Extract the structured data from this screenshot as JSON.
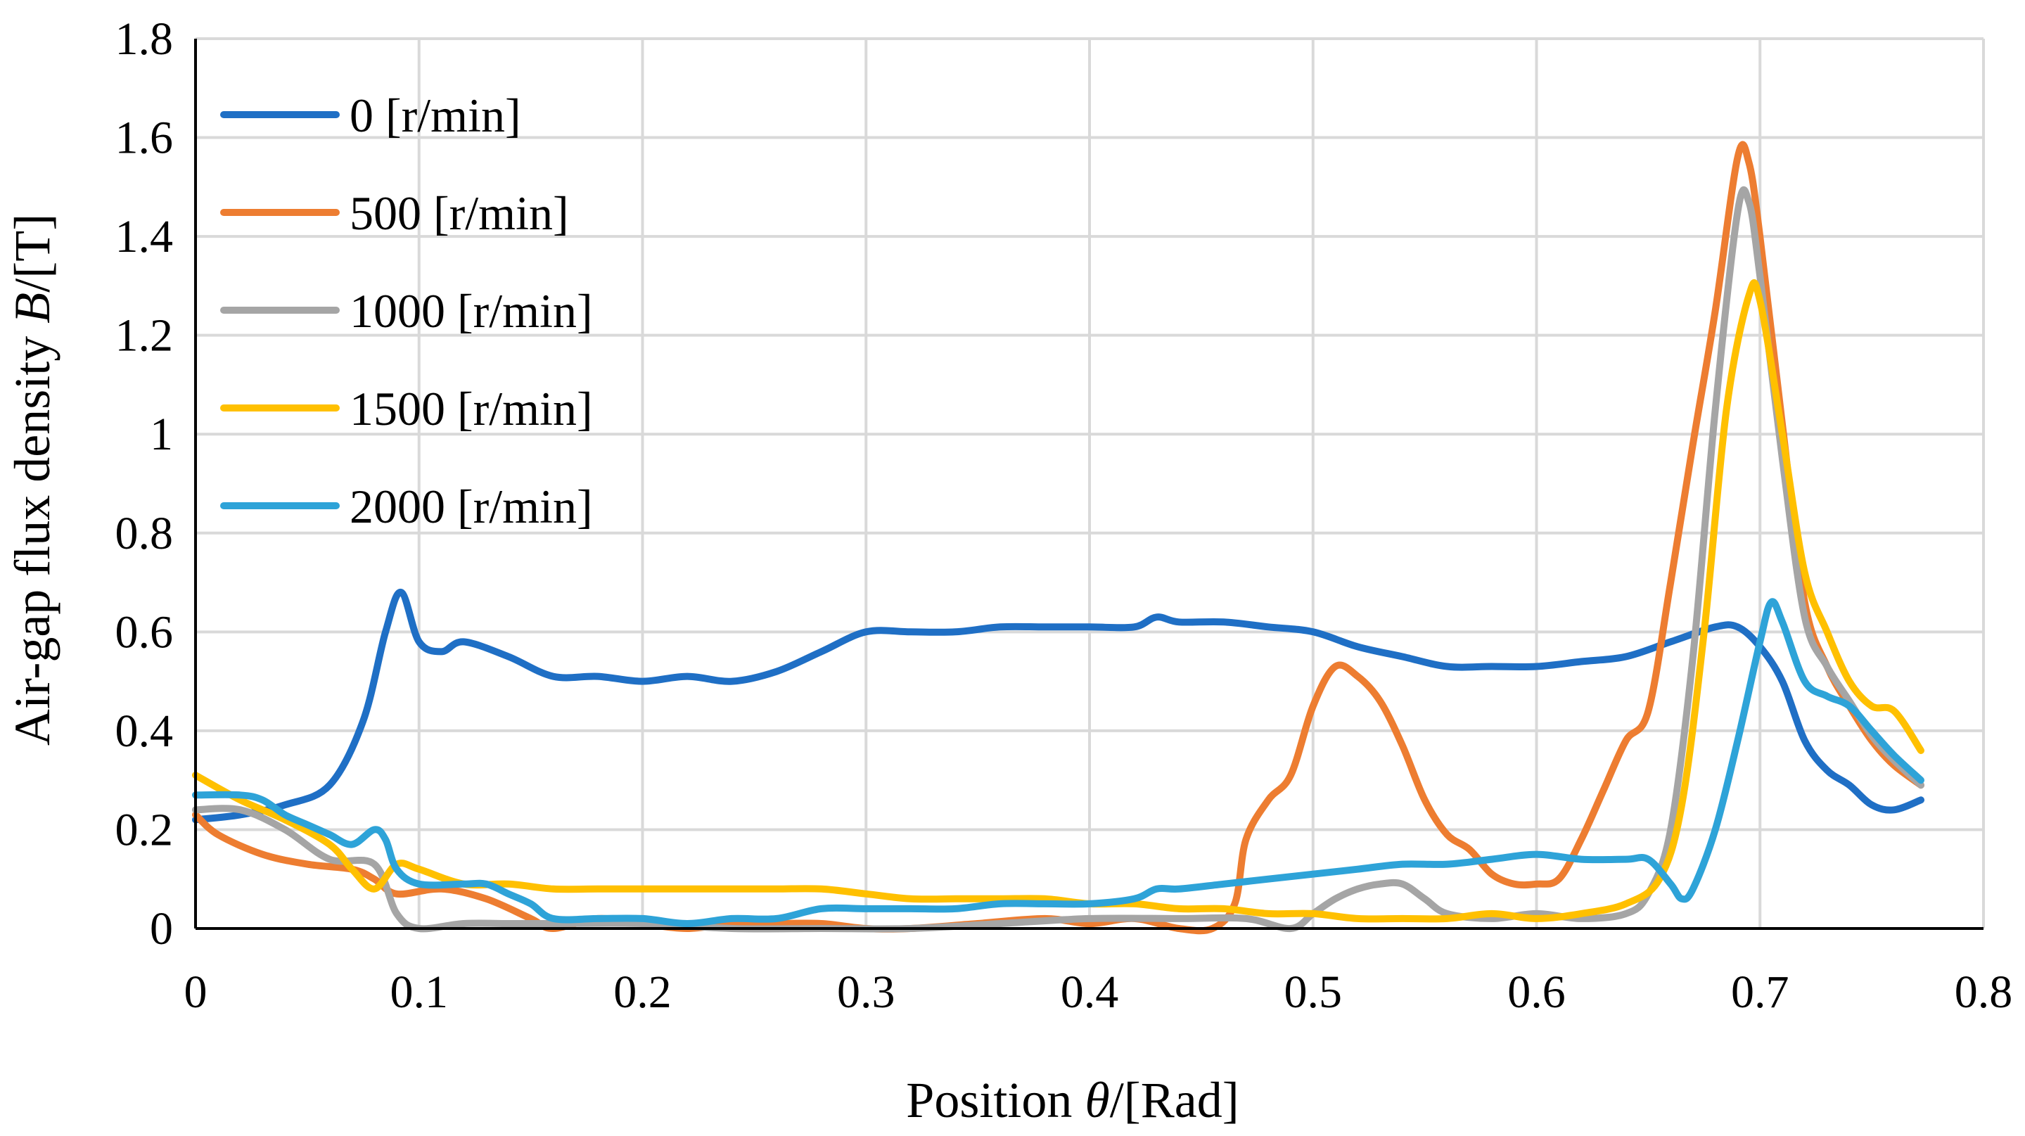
{
  "chart_data": {
    "type": "line",
    "title": "",
    "xlabel": {
      "prefix": "Position ",
      "symbol": "θ",
      "suffix": "/[Rad]"
    },
    "ylabel": {
      "prefix": "Air-gap flux density ",
      "symbol": "B",
      "suffix": "/[T]"
    },
    "xlim": [
      0,
      0.8
    ],
    "ylim": [
      0,
      1.8
    ],
    "xticks": [
      0,
      0.1,
      0.2,
      0.3,
      0.4,
      0.5,
      0.6,
      0.7,
      0.8
    ],
    "xtick_labels": [
      "0",
      "0.1",
      "0.2",
      "0.3",
      "0.4",
      "0.5",
      "0.6",
      "0.7",
      "0.8"
    ],
    "yticks": [
      0,
      0.2,
      0.4,
      0.6,
      0.8,
      1,
      1.2,
      1.4,
      1.6,
      1.8
    ],
    "ytick_labels": [
      "0",
      "0.2",
      "0.4",
      "0.6",
      "0.8",
      "1",
      "1.2",
      "1.4",
      "1.6",
      "1.8"
    ],
    "grid": true,
    "legend_position": "top-left",
    "series": [
      {
        "name": "0 [r/min]",
        "color": "#1f6fc5",
        "points": [
          [
            0,
            0.22
          ],
          [
            0.02,
            0.23
          ],
          [
            0.04,
            0.25
          ],
          [
            0.06,
            0.29
          ],
          [
            0.075,
            0.42
          ],
          [
            0.085,
            0.6
          ],
          [
            0.092,
            0.68
          ],
          [
            0.1,
            0.58
          ],
          [
            0.11,
            0.56
          ],
          [
            0.12,
            0.58
          ],
          [
            0.14,
            0.55
          ],
          [
            0.16,
            0.51
          ],
          [
            0.18,
            0.51
          ],
          [
            0.2,
            0.5
          ],
          [
            0.22,
            0.51
          ],
          [
            0.24,
            0.5
          ],
          [
            0.26,
            0.52
          ],
          [
            0.28,
            0.56
          ],
          [
            0.3,
            0.6
          ],
          [
            0.32,
            0.6
          ],
          [
            0.34,
            0.6
          ],
          [
            0.36,
            0.61
          ],
          [
            0.38,
            0.61
          ],
          [
            0.4,
            0.61
          ],
          [
            0.42,
            0.61
          ],
          [
            0.43,
            0.63
          ],
          [
            0.44,
            0.62
          ],
          [
            0.46,
            0.62
          ],
          [
            0.48,
            0.61
          ],
          [
            0.5,
            0.6
          ],
          [
            0.52,
            0.57
          ],
          [
            0.54,
            0.55
          ],
          [
            0.56,
            0.53
          ],
          [
            0.58,
            0.53
          ],
          [
            0.6,
            0.53
          ],
          [
            0.62,
            0.54
          ],
          [
            0.64,
            0.55
          ],
          [
            0.66,
            0.58
          ],
          [
            0.68,
            0.61
          ],
          [
            0.69,
            0.61
          ],
          [
            0.7,
            0.57
          ],
          [
            0.71,
            0.5
          ],
          [
            0.72,
            0.38
          ],
          [
            0.73,
            0.32
          ],
          [
            0.74,
            0.29
          ],
          [
            0.75,
            0.25
          ],
          [
            0.76,
            0.24
          ],
          [
            0.772,
            0.26
          ]
        ]
      },
      {
        "name": "500 [r/min]",
        "color": "#ed7d31",
        "points": [
          [
            0,
            0.23
          ],
          [
            0.01,
            0.19
          ],
          [
            0.03,
            0.15
          ],
          [
            0.05,
            0.13
          ],
          [
            0.07,
            0.12
          ],
          [
            0.08,
            0.1
          ],
          [
            0.09,
            0.07
          ],
          [
            0.11,
            0.08
          ],
          [
            0.13,
            0.06
          ],
          [
            0.15,
            0.02
          ],
          [
            0.16,
            0
          ],
          [
            0.18,
            0.02
          ],
          [
            0.2,
            0.01
          ],
          [
            0.22,
            0
          ],
          [
            0.24,
            0.01
          ],
          [
            0.26,
            0.01
          ],
          [
            0.28,
            0.01
          ],
          [
            0.3,
            0
          ],
          [
            0.32,
            0
          ],
          [
            0.35,
            0.01
          ],
          [
            0.38,
            0.02
          ],
          [
            0.4,
            0.01
          ],
          [
            0.42,
            0.02
          ],
          [
            0.44,
            0
          ],
          [
            0.455,
            0
          ],
          [
            0.465,
            0.05
          ],
          [
            0.47,
            0.18
          ],
          [
            0.48,
            0.26
          ],
          [
            0.49,
            0.31
          ],
          [
            0.5,
            0.45
          ],
          [
            0.51,
            0.53
          ],
          [
            0.52,
            0.51
          ],
          [
            0.53,
            0.46
          ],
          [
            0.54,
            0.37
          ],
          [
            0.55,
            0.26
          ],
          [
            0.56,
            0.19
          ],
          [
            0.57,
            0.16
          ],
          [
            0.58,
            0.11
          ],
          [
            0.59,
            0.09
          ],
          [
            0.6,
            0.09
          ],
          [
            0.61,
            0.1
          ],
          [
            0.62,
            0.18
          ],
          [
            0.63,
            0.28
          ],
          [
            0.64,
            0.38
          ],
          [
            0.65,
            0.44
          ],
          [
            0.66,
            0.7
          ],
          [
            0.67,
            0.98
          ],
          [
            0.68,
            1.25
          ],
          [
            0.69,
            1.56
          ],
          [
            0.695,
            1.55
          ],
          [
            0.7,
            1.4
          ],
          [
            0.71,
            1.02
          ],
          [
            0.72,
            0.66
          ],
          [
            0.73,
            0.53
          ],
          [
            0.74,
            0.45
          ],
          [
            0.75,
            0.38
          ],
          [
            0.76,
            0.33
          ],
          [
            0.772,
            0.29
          ]
        ]
      },
      {
        "name": "1000 [r/min]",
        "color": "#a5a5a5",
        "points": [
          [
            0,
            0.24
          ],
          [
            0.02,
            0.24
          ],
          [
            0.04,
            0.2
          ],
          [
            0.06,
            0.14
          ],
          [
            0.08,
            0.13
          ],
          [
            0.09,
            0.03
          ],
          [
            0.1,
            0
          ],
          [
            0.12,
            0.01
          ],
          [
            0.14,
            0.01
          ],
          [
            0.16,
            0.01
          ],
          [
            0.2,
            0.01
          ],
          [
            0.24,
            0
          ],
          [
            0.28,
            0
          ],
          [
            0.32,
            0
          ],
          [
            0.36,
            0.01
          ],
          [
            0.4,
            0.02
          ],
          [
            0.44,
            0.02
          ],
          [
            0.47,
            0.02
          ],
          [
            0.49,
            0
          ],
          [
            0.5,
            0.03
          ],
          [
            0.51,
            0.06
          ],
          [
            0.52,
            0.08
          ],
          [
            0.53,
            0.09
          ],
          [
            0.54,
            0.09
          ],
          [
            0.55,
            0.06
          ],
          [
            0.56,
            0.03
          ],
          [
            0.58,
            0.02
          ],
          [
            0.6,
            0.03
          ],
          [
            0.62,
            0.02
          ],
          [
            0.64,
            0.03
          ],
          [
            0.65,
            0.07
          ],
          [
            0.66,
            0.2
          ],
          [
            0.67,
            0.55
          ],
          [
            0.68,
            1.05
          ],
          [
            0.69,
            1.45
          ],
          [
            0.695,
            1.47
          ],
          [
            0.7,
            1.32
          ],
          [
            0.71,
            0.95
          ],
          [
            0.72,
            0.63
          ],
          [
            0.73,
            0.53
          ],
          [
            0.74,
            0.46
          ],
          [
            0.75,
            0.39
          ],
          [
            0.76,
            0.34
          ],
          [
            0.772,
            0.29
          ]
        ]
      },
      {
        "name": "1500 [r/min]",
        "color": "#ffc000",
        "points": [
          [
            0,
            0.31
          ],
          [
            0.02,
            0.26
          ],
          [
            0.04,
            0.22
          ],
          [
            0.06,
            0.17
          ],
          [
            0.07,
            0.12
          ],
          [
            0.08,
            0.08
          ],
          [
            0.09,
            0.13
          ],
          [
            0.1,
            0.12
          ],
          [
            0.12,
            0.09
          ],
          [
            0.14,
            0.09
          ],
          [
            0.16,
            0.08
          ],
          [
            0.18,
            0.08
          ],
          [
            0.2,
            0.08
          ],
          [
            0.22,
            0.08
          ],
          [
            0.24,
            0.08
          ],
          [
            0.26,
            0.08
          ],
          [
            0.28,
            0.08
          ],
          [
            0.3,
            0.07
          ],
          [
            0.32,
            0.06
          ],
          [
            0.34,
            0.06
          ],
          [
            0.36,
            0.06
          ],
          [
            0.38,
            0.06
          ],
          [
            0.4,
            0.05
          ],
          [
            0.42,
            0.05
          ],
          [
            0.44,
            0.04
          ],
          [
            0.46,
            0.04
          ],
          [
            0.48,
            0.03
          ],
          [
            0.5,
            0.03
          ],
          [
            0.52,
            0.02
          ],
          [
            0.54,
            0.02
          ],
          [
            0.56,
            0.02
          ],
          [
            0.58,
            0.03
          ],
          [
            0.6,
            0.02
          ],
          [
            0.62,
            0.03
          ],
          [
            0.64,
            0.05
          ],
          [
            0.655,
            0.1
          ],
          [
            0.665,
            0.25
          ],
          [
            0.675,
            0.6
          ],
          [
            0.685,
            1.05
          ],
          [
            0.695,
            1.28
          ],
          [
            0.7,
            1.27
          ],
          [
            0.71,
            1.0
          ],
          [
            0.72,
            0.72
          ],
          [
            0.73,
            0.6
          ],
          [
            0.74,
            0.5
          ],
          [
            0.75,
            0.45
          ],
          [
            0.76,
            0.44
          ],
          [
            0.772,
            0.36
          ]
        ]
      },
      {
        "name": "2000 [r/min]",
        "color": "#2ea3d8",
        "points": [
          [
            0,
            0.27
          ],
          [
            0.02,
            0.27
          ],
          [
            0.03,
            0.26
          ],
          [
            0.04,
            0.23
          ],
          [
            0.05,
            0.21
          ],
          [
            0.06,
            0.19
          ],
          [
            0.07,
            0.17
          ],
          [
            0.08,
            0.2
          ],
          [
            0.085,
            0.18
          ],
          [
            0.09,
            0.12
          ],
          [
            0.1,
            0.09
          ],
          [
            0.12,
            0.09
          ],
          [
            0.13,
            0.09
          ],
          [
            0.14,
            0.07
          ],
          [
            0.15,
            0.05
          ],
          [
            0.16,
            0.02
          ],
          [
            0.18,
            0.02
          ],
          [
            0.2,
            0.02
          ],
          [
            0.22,
            0.01
          ],
          [
            0.24,
            0.02
          ],
          [
            0.26,
            0.02
          ],
          [
            0.28,
            0.04
          ],
          [
            0.3,
            0.04
          ],
          [
            0.32,
            0.04
          ],
          [
            0.34,
            0.04
          ],
          [
            0.36,
            0.05
          ],
          [
            0.38,
            0.05
          ],
          [
            0.4,
            0.05
          ],
          [
            0.42,
            0.06
          ],
          [
            0.43,
            0.08
          ],
          [
            0.44,
            0.08
          ],
          [
            0.46,
            0.09
          ],
          [
            0.48,
            0.1
          ],
          [
            0.5,
            0.11
          ],
          [
            0.52,
            0.12
          ],
          [
            0.54,
            0.13
          ],
          [
            0.56,
            0.13
          ],
          [
            0.58,
            0.14
          ],
          [
            0.6,
            0.15
          ],
          [
            0.62,
            0.14
          ],
          [
            0.64,
            0.14
          ],
          [
            0.65,
            0.14
          ],
          [
            0.66,
            0.09
          ],
          [
            0.665,
            0.06
          ],
          [
            0.67,
            0.08
          ],
          [
            0.68,
            0.2
          ],
          [
            0.69,
            0.38
          ],
          [
            0.7,
            0.58
          ],
          [
            0.705,
            0.66
          ],
          [
            0.71,
            0.62
          ],
          [
            0.72,
            0.5
          ],
          [
            0.73,
            0.47
          ],
          [
            0.74,
            0.45
          ],
          [
            0.75,
            0.4
          ],
          [
            0.76,
            0.35
          ],
          [
            0.772,
            0.3
          ]
        ]
      }
    ]
  }
}
